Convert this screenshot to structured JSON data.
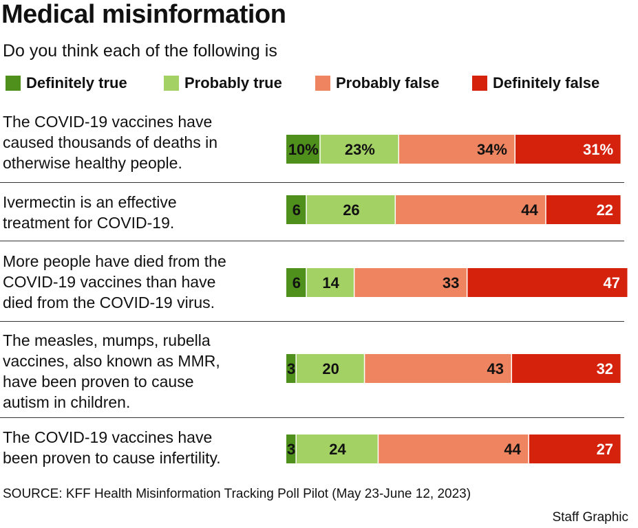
{
  "title": "Medical misinformation",
  "subtitle": "Do you think each of the following is",
  "source": "SOURCE: KFF Health Misinformation Tracking Poll Pilot (May 23-June 12, 2023)",
  "credit": "Staff Graphic",
  "chart_data": {
    "type": "bar",
    "orientation": "horizontal-stacked",
    "unit": "%",
    "legend_placement": "top",
    "series": [
      {
        "name": "Definitely true",
        "color": "#4f8f1c",
        "values": [
          10,
          6,
          6,
          3,
          3
        ]
      },
      {
        "name": "Probably true",
        "color": "#a4d164",
        "values": [
          23,
          26,
          14,
          20,
          24
        ]
      },
      {
        "name": "Probably false",
        "color": "#ee8560",
        "values": [
          34,
          44,
          33,
          43,
          44
        ]
      },
      {
        "name": "Definitely false",
        "color": "#d4220c",
        "values": [
          31,
          22,
          47,
          32,
          27
        ]
      }
    ],
    "categories": [
      [
        "The COVID-19 vaccines have",
        "caused thousands of deaths in",
        "otherwise healthy people."
      ],
      [
        "Ivermectin is an effective",
        "treatment for COVID-19."
      ],
      [
        "More people have died from the",
        "COVID-19 vaccines than have",
        "died from the COVID-19 virus."
      ],
      [
        "The measles, mumps, rubella",
        "vaccines, also known as MMR,",
        "have been proven to cause",
        "autism in children."
      ],
      [
        "The COVID-19 vaccines have",
        "been proven to cause infertility."
      ]
    ],
    "first_row_labels": [
      "10%",
      "23%",
      "34%",
      "31%"
    ]
  }
}
